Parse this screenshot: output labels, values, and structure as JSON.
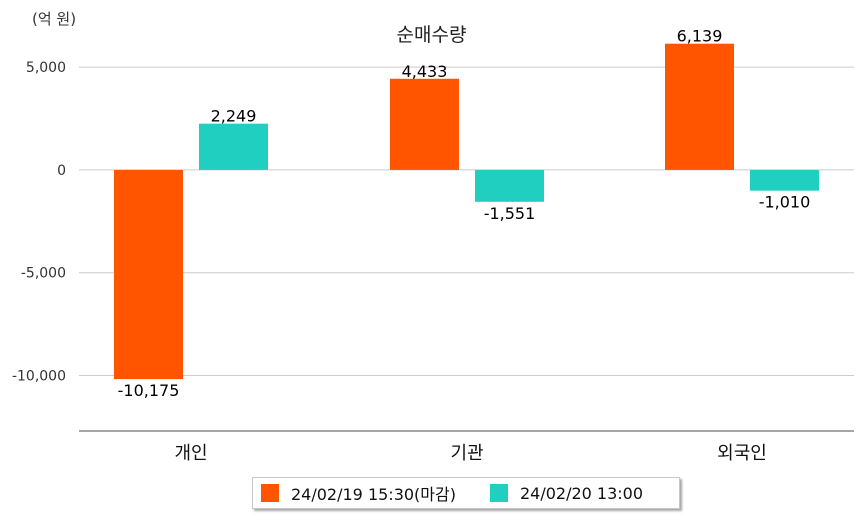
{
  "chart_data": {
    "type": "bar",
    "title": "순매수량",
    "unit": "(억 원)",
    "categories": [
      "개인",
      "기관",
      "외국인"
    ],
    "series": [
      {
        "name": "24/02/19 15:30(마감)",
        "color": "#FF5500",
        "values": [
          -10175,
          4433,
          6139
        ]
      },
      {
        "name": "24/02/20 13:00",
        "color": "#20CFC0",
        "values": [
          2249,
          -1551,
          -1010
        ]
      }
    ],
    "data_labels": [
      [
        "-10,175",
        "4,433",
        "6,139"
      ],
      [
        "2,249",
        "-1,551",
        "-1,010"
      ]
    ],
    "y_ticks": [
      5000,
      0,
      -5000,
      -10000
    ],
    "y_tick_labels": [
      "5,000",
      "0",
      "-5,000",
      "-10,000"
    ],
    "ylim": [
      -12700,
      7000
    ],
    "grid": true,
    "legend_position": "bottom"
  }
}
